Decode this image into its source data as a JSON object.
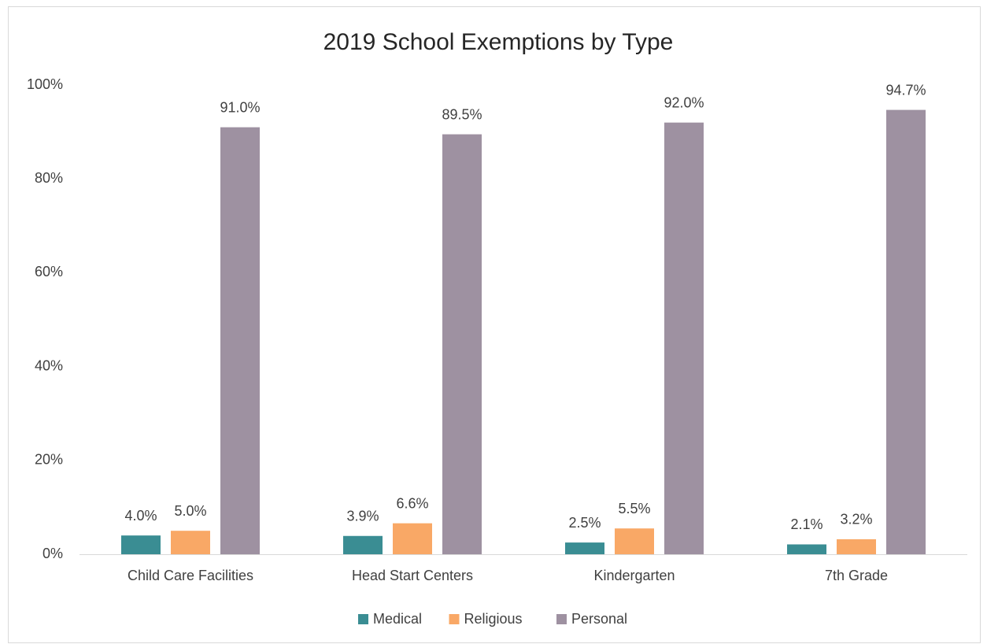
{
  "chart_data": {
    "type": "bar",
    "title": "2019 School Exemptions by Type",
    "categories": [
      "Child Care Facilities",
      "Head Start Centers",
      "Kindergarten",
      "7th Grade"
    ],
    "series": [
      {
        "name": "Medical",
        "color": "#3a8d93",
        "values": [
          4.0,
          3.9,
          2.5,
          2.1
        ],
        "value_labels": [
          "4.0%",
          "3.9%",
          "2.5%",
          "2.1%"
        ]
      },
      {
        "name": "Religious",
        "color": "#f9a866",
        "values": [
          5.0,
          6.6,
          5.5,
          3.2
        ],
        "value_labels": [
          "5.0%",
          "6.6%",
          "5.5%",
          "3.2%"
        ]
      },
      {
        "name": "Personal",
        "color": "#9e91a1",
        "values": [
          91.0,
          89.5,
          92.0,
          94.7
        ],
        "value_labels": [
          "91.0%",
          "89.5%",
          "92.0%",
          "94.7%"
        ]
      }
    ],
    "ylim": [
      0,
      100
    ],
    "yticks": [
      {
        "value": 0,
        "label": "0%"
      },
      {
        "value": 20,
        "label": "20%"
      },
      {
        "value": 40,
        "label": "40%"
      },
      {
        "value": 60,
        "label": "60%"
      },
      {
        "value": 80,
        "label": "80%"
      },
      {
        "value": 100,
        "label": "100%"
      }
    ],
    "grid": false,
    "legend": "bottom"
  }
}
